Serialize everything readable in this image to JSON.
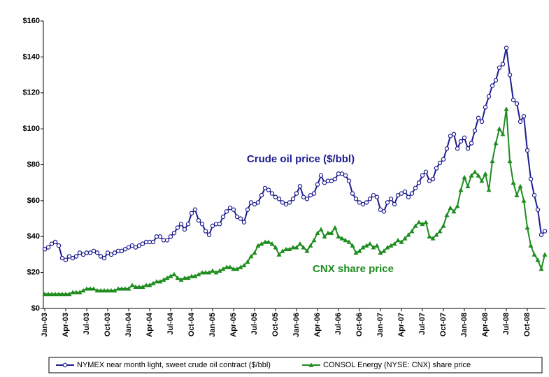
{
  "chart_data": {
    "type": "line",
    "annotations": [
      "Crude oil price ($/bbl)",
      "CNX share price"
    ],
    "categories": [
      "Jan-03",
      null,
      null,
      null,
      null,
      null,
      "Apr-03",
      null,
      null,
      null,
      null,
      null,
      "Jul-03",
      null,
      null,
      null,
      null,
      null,
      "Oct-03",
      null,
      null,
      null,
      null,
      null,
      "Jan-04",
      null,
      null,
      null,
      null,
      null,
      "Apr-04",
      null,
      null,
      null,
      null,
      null,
      "Jul-04",
      null,
      null,
      null,
      null,
      null,
      "Oct-04",
      null,
      null,
      null,
      null,
      null,
      "Jan-05",
      null,
      null,
      null,
      null,
      null,
      "Apr-05",
      null,
      null,
      null,
      null,
      null,
      "Jul-05",
      null,
      null,
      null,
      null,
      null,
      "Oct-05",
      null,
      null,
      null,
      null,
      null,
      "Jan-06",
      null,
      null,
      null,
      null,
      null,
      "Apr-06",
      null,
      null,
      null,
      null,
      null,
      "Jul-06",
      null,
      null,
      null,
      null,
      null,
      "Oct-06",
      null,
      null,
      null,
      null,
      null,
      "Jan-07",
      null,
      null,
      null,
      null,
      null,
      "Apr-07",
      null,
      null,
      null,
      null,
      null,
      "Jul-07",
      null,
      null,
      null,
      null,
      null,
      "Oct-07",
      null,
      null,
      null,
      null,
      null,
      "Jan-08",
      null,
      null,
      null,
      null,
      null,
      "Apr-08",
      null,
      null,
      null,
      null,
      null,
      "Jul-08",
      null,
      null,
      null,
      null,
      null,
      "Oct-08",
      null,
      null,
      null,
      null,
      null
    ],
    "series": [
      {
        "name": "NYMEX near month light, sweet crude oil contract ($/bbl)",
        "color": "#1c1c8e",
        "marker": "circle",
        "values": [
          33,
          34,
          36,
          37,
          35,
          28,
          27,
          29,
          28,
          29,
          31,
          30,
          31,
          31,
          32,
          31,
          29,
          28,
          31,
          30,
          31,
          32,
          32,
          33,
          34,
          35,
          34,
          35,
          36,
          37,
          37,
          37,
          40,
          40,
          38,
          38,
          40,
          42,
          45,
          47,
          44,
          47,
          53,
          55,
          49,
          47,
          43,
          41,
          46,
          47,
          47,
          51,
          54,
          56,
          55,
          51,
          50,
          48,
          55,
          59,
          58,
          59,
          63,
          67,
          66,
          64,
          62,
          61,
          59,
          58,
          59,
          61,
          64,
          68,
          62,
          61,
          63,
          64,
          69,
          74,
          70,
          71,
          71,
          72,
          75,
          75,
          74,
          71,
          64,
          61,
          59,
          58,
          59,
          61,
          63,
          62,
          55,
          54,
          59,
          61,
          58,
          63,
          64,
          65,
          62,
          64,
          67,
          70,
          74,
          76,
          71,
          72,
          78,
          81,
          83,
          89,
          96,
          97,
          89,
          93,
          95,
          89,
          92,
          99,
          106,
          104,
          112,
          118,
          124,
          127,
          134,
          136,
          145,
          130,
          116,
          114,
          104,
          107,
          88,
          72,
          63,
          55,
          41,
          43
        ]
      },
      {
        "name": "CONSOL Energy (NYSE: CNX) share price",
        "color": "#1e8c1e",
        "marker": "triangle",
        "values": [
          8,
          8,
          8,
          8,
          8,
          8,
          8,
          8,
          9,
          9,
          9,
          10,
          11,
          11,
          11,
          10,
          10,
          10,
          10,
          10,
          10,
          11,
          11,
          11,
          11,
          13,
          12,
          12,
          12,
          13,
          13,
          14,
          15,
          15,
          16,
          17,
          18,
          19,
          17,
          16,
          17,
          17,
          18,
          18,
          19,
          20,
          20,
          20,
          21,
          20,
          21,
          22,
          23,
          23,
          22,
          22,
          23,
          24,
          26,
          29,
          31,
          35,
          36,
          37,
          37,
          36,
          34,
          30,
          32,
          33,
          33,
          34,
          34,
          36,
          34,
          32,
          35,
          38,
          42,
          44,
          40,
          42,
          42,
          45,
          40,
          39,
          38,
          37,
          35,
          31,
          32,
          34,
          35,
          36,
          34,
          35,
          31,
          32,
          34,
          35,
          36,
          38,
          37,
          39,
          41,
          43,
          46,
          48,
          47,
          48,
          40,
          39,
          41,
          43,
          46,
          52,
          56,
          54,
          57,
          66,
          73,
          68,
          74,
          76,
          74,
          71,
          75,
          66,
          82,
          92,
          100,
          97,
          111,
          82,
          70,
          63,
          68,
          60,
          45,
          35,
          30,
          27,
          22,
          30
        ]
      }
    ],
    "ylim": [
      0,
      160
    ],
    "yticks": [
      {
        "value": 0,
        "label": "$0"
      },
      {
        "value": 20,
        "label": "$20"
      },
      {
        "value": 40,
        "label": "$40"
      },
      {
        "value": 60,
        "label": "$60"
      },
      {
        "value": 80,
        "label": "$80"
      },
      {
        "value": 100,
        "label": "$100"
      },
      {
        "value": 120,
        "label": "$120"
      },
      {
        "value": 140,
        "label": "$140"
      },
      {
        "value": 160,
        "label": "$160"
      }
    ],
    "grid": false,
    "legend": "bottom"
  }
}
